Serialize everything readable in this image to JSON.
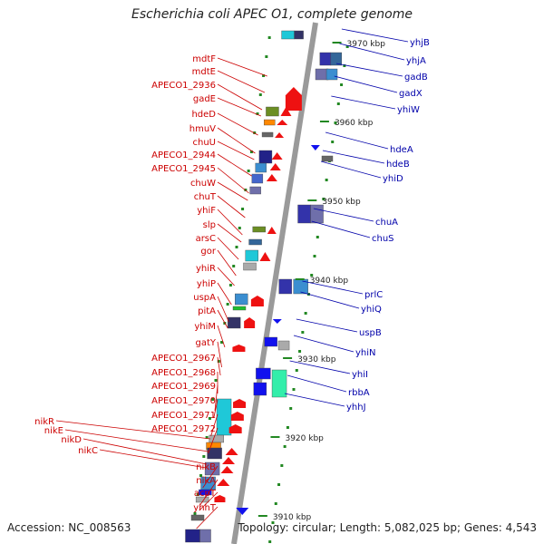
{
  "title": "Escherichia coli APEC O1, complete genome",
  "footer": {
    "accession": "Accession: NC_008563",
    "summary": "Topology: circular; Length: 5,082,025 bp; Genes: 4,543"
  },
  "colors": {
    "left_label": "#cc0000",
    "right_label": "#0000aa",
    "axis": "#888888",
    "tick": "#228822"
  },
  "scale": {
    "ticks": [
      {
        "label": "3970 kbp"
      },
      {
        "label": "3960 kbp"
      },
      {
        "label": "3950 kbp"
      },
      {
        "label": "3940 kbp"
      },
      {
        "label": "3930 kbp"
      },
      {
        "label": "3920 kbp"
      },
      {
        "label": "3910 kbp"
      }
    ]
  },
  "left_labels": [
    "mdtF",
    "mdtE",
    "APECO1_2936",
    "gadE",
    "hdeD",
    "hmuV",
    "chuU",
    "APECO1_2944",
    "APECO1_2945",
    "chuW",
    "chuT",
    "yhiF",
    "slp",
    "arsC",
    "gor",
    "yhiR",
    "yhiP",
    "uspA",
    "pitA",
    "yhiM",
    "gatY",
    "APECO1_2967",
    "APECO1_2968",
    "APECO1_2969",
    "APECO1_2970",
    "APECO1_2971",
    "APECO1_2972",
    "nikR",
    "nikE",
    "nikD",
    "nikC",
    "nikB",
    "nikA",
    "acpT",
    "yhhT"
  ],
  "right_labels": [
    "yhjB",
    "yhjA",
    "gadB",
    "gadX",
    "yhiW",
    "hdeA",
    "hdeB",
    "yhiD",
    "chuA",
    "chuS",
    "prlC",
    "yhiQ",
    "uspB",
    "yhiN",
    "yhiI",
    "rbbA",
    "yhhJ"
  ]
}
